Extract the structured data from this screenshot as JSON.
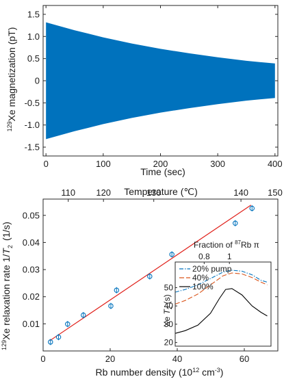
{
  "chart_data": [
    {
      "id": "top",
      "type": "area",
      "ylabel_sup": "129",
      "ylabel_main": "Xe magnetization (pT)",
      "xlabel": "Time (sec)",
      "xlim": [
        -5,
        405
      ],
      "ylim": [
        -1.7,
        1.7
      ],
      "xticks": [
        0,
        100,
        200,
        300,
        400
      ],
      "yticks": [
        -1.5,
        -1.0,
        -0.5,
        0,
        0.5,
        1.0,
        1.5
      ],
      "ytick_labels": [
        "-1.5",
        "-1.0",
        "-0.5",
        "0",
        "0.5",
        "1.0",
        "1.5"
      ],
      "envelope": {
        "x": [
          0,
          50,
          100,
          150,
          200,
          250,
          300,
          350,
          400
        ],
        "y": [
          1.32,
          1.14,
          0.98,
          0.84,
          0.72,
          0.62,
          0.53,
          0.45,
          0.39
        ]
      },
      "color": "#0072BD"
    },
    {
      "id": "bottom",
      "type": "scatter",
      "ylabel_a": "Xe relaxation rate 1/",
      "ylabel_sup": "129",
      "ylabel_T": "T",
      "ylabel_sub": "2",
      "ylabel_unit": "(1/s)",
      "xlabel_main": "Rb number density (10",
      "xlabel_sup1": "12",
      "xlabel_mid": " cm",
      "xlabel_sup2": "-3",
      "xlabel_end": ")",
      "top_axis_label": "Temperature (℃)",
      "xlim": [
        0,
        70
      ],
      "ylim": [
        0,
        0.056
      ],
      "xticks": [
        0,
        20,
        40,
        60
      ],
      "yticks": [
        0.01,
        0.02,
        0.03,
        0.04,
        0.05
      ],
      "ytick_labels": [
        "0.01",
        "0.02",
        "0.03",
        "0.04",
        "0.05"
      ],
      "top_ticks": [
        {
          "x": 7.5,
          "label": "110"
        },
        {
          "x": 18,
          "label": "120"
        },
        {
          "x": 33,
          "label": "130"
        },
        {
          "x": 59,
          "label": "140"
        }
      ],
      "top_tick_150": "150",
      "points": {
        "x": [
          2.2,
          4.6,
          7.3,
          12.0,
          20.2,
          21.9,
          31.8,
          38.4,
          57.3,
          62.3
        ],
        "y": [
          0.0033,
          0.0051,
          0.0099,
          0.0132,
          0.0166,
          0.0224,
          0.0275,
          0.0356,
          0.0471,
          0.0526
        ]
      },
      "fit": {
        "x": [
          2,
          62
        ],
        "y": [
          0.0038,
          0.0538
        ]
      },
      "point_color": "#0072BD",
      "fit_color": "#e0201a",
      "inset": {
        "title_a": "Fraction of ",
        "title_sup": "87",
        "title_b": "Rb π",
        "xlim": [
          0.57,
          1.33
        ],
        "ylim": [
          18,
          64
        ],
        "top_ticks": [
          {
            "x": 0.8,
            "label": "0.8"
          },
          {
            "x": 1.0,
            "label": "1"
          }
        ],
        "yticks": [
          20,
          30,
          40,
          50
        ],
        "ylabel_a": "Xe ",
        "ylabel_T": "T",
        "ylabel_sub": "2",
        "ylabel_unit": " (s)",
        "series": [
          {
            "name": "20% pump",
            "color": "#0072BD",
            "dash": "6,2,1.5,2",
            "x": [
              0.57,
              0.65,
              0.75,
              0.85,
              0.95,
              1.02,
              1.1,
              1.18,
              1.25,
              1.3
            ],
            "y": [
              47.5,
              49.0,
              51.5,
              55.0,
              58.5,
              59.5,
              59.0,
              57.0,
              54.0,
              53.0
            ]
          },
          {
            "name": "40%",
            "color": "#D95319",
            "dash": "7,3",
            "x": [
              0.57,
              0.65,
              0.75,
              0.85,
              0.95,
              1.02,
              1.1,
              1.18,
              1.25,
              1.3
            ],
            "y": [
              41.0,
              43.0,
              46.5,
              51.5,
              56.5,
              58.0,
              57.5,
              55.5,
              53.0,
              51.5
            ]
          },
          {
            "name": "100%",
            "color": "#000000",
            "dash": "",
            "x": [
              0.57,
              0.65,
              0.75,
              0.85,
              0.92,
              0.97,
              1.02,
              1.1,
              1.18,
              1.25,
              1.3
            ],
            "y": [
              25.0,
              26.5,
              29.5,
              36.0,
              44.0,
              49.0,
              49.5,
              46.0,
              40.0,
              36.5,
              34.5
            ]
          }
        ]
      }
    }
  ]
}
